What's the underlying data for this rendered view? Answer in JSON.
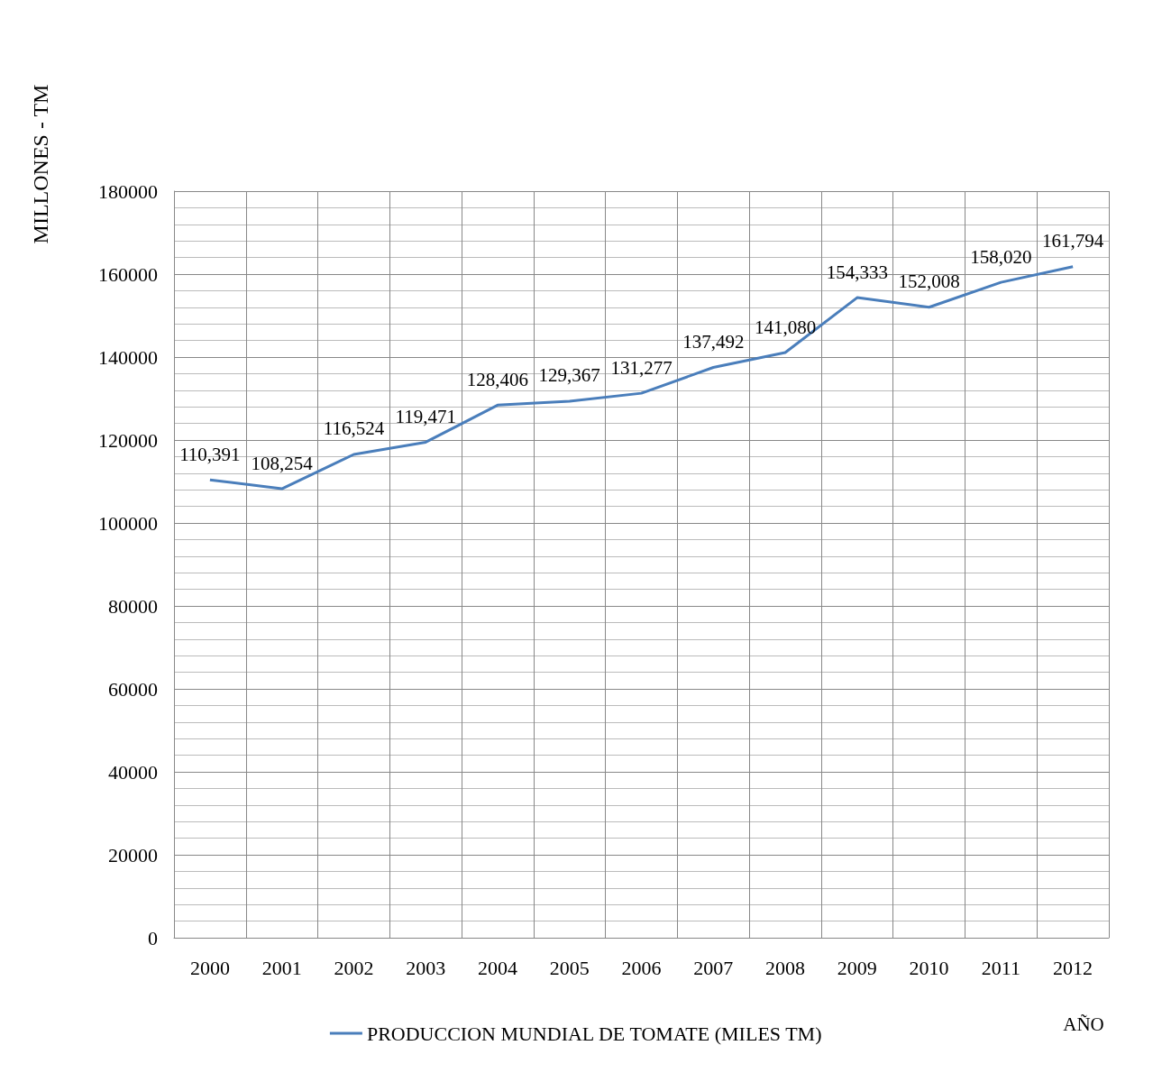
{
  "chart_data": {
    "type": "line",
    "categories": [
      "2000",
      "2001",
      "2002",
      "2003",
      "2004",
      "2005",
      "2006",
      "2007",
      "2008",
      "2009",
      "2010",
      "2011",
      "2012"
    ],
    "series": [
      {
        "name": "PRODUCCION MUNDIAL DE TOMATE (MILES TM)",
        "color": "#4a7ebb",
        "values": [
          110391,
          108254,
          116524,
          119471,
          128406,
          129367,
          131277,
          137492,
          141080,
          154333,
          152008,
          158020,
          161794
        ],
        "value_labels": [
          "110,391",
          "108,254",
          "116,524",
          "119,471",
          "128,406",
          "129,367",
          "131,277",
          "137,492",
          "141,080",
          "154,333",
          "152,008",
          "158,020",
          "161,794"
        ]
      }
    ],
    "ylim": [
      0,
      180000
    ],
    "yticks": [
      0,
      20000,
      40000,
      60000,
      80000,
      100000,
      120000,
      140000,
      160000,
      180000
    ],
    "ylabel": "MILLONES - TM",
    "xlabel": "AÑO",
    "grid": true,
    "legend": "bottom",
    "marker": "none",
    "line_style": "solid"
  }
}
